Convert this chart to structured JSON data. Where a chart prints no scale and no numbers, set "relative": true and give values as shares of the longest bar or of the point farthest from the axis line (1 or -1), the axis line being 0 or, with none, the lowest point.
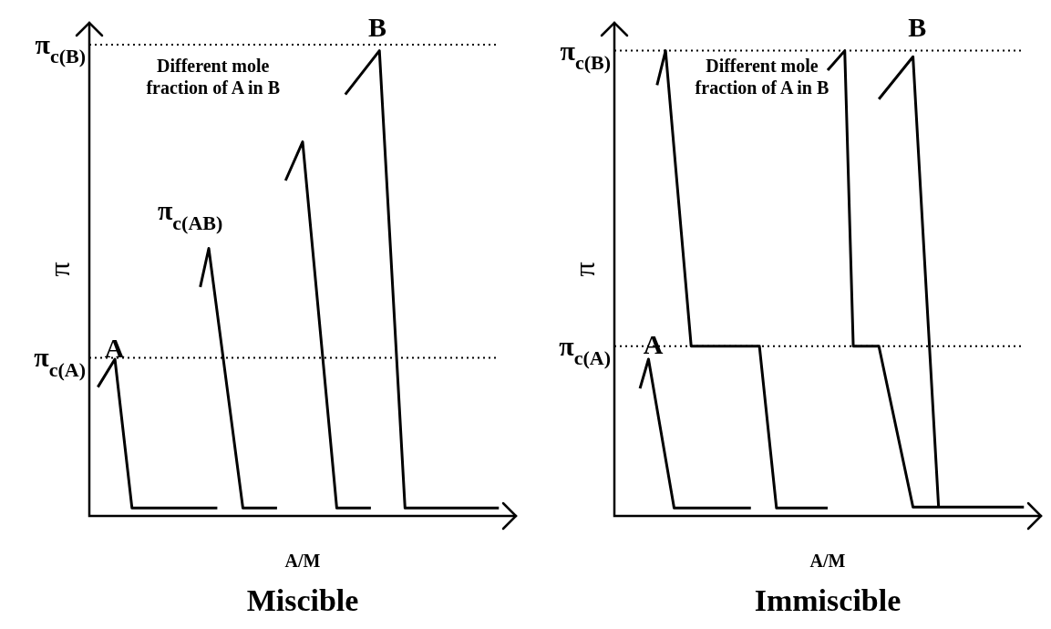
{
  "chart_data": [
    {
      "type": "line",
      "title": "Miscible",
      "xlabel": "A/M",
      "ylabel": "π",
      "relative": true,
      "tick_labels": false,
      "categories": [
        null,
        null,
        null,
        null,
        null,
        null,
        null,
        null,
        null,
        null,
        null,
        null,
        null,
        null,
        null,
        null,
        null,
        null,
        null,
        null,
        null,
        null,
        null,
        null,
        null,
        null,
        null,
        null,
        null,
        null,
        null,
        null,
        null,
        null,
        null,
        null,
        null,
        null,
        null,
        null,
        null,
        null,
        null,
        null,
        null,
        null,
        null,
        null,
        null,
        null,
        null
      ],
      "series": [
        {
          "color": "#000000",
          "values": [
            null,
            0.277,
            null,
            0.337,
            null,
            0.017,
            null,
            null,
            null,
            null,
            null,
            null,
            null,
            null,
            null,
            0.017,
            null,
            null,
            null,
            null,
            null,
            null,
            null,
            null,
            null,
            null,
            null,
            null,
            null,
            null,
            null,
            null,
            null,
            null,
            null,
            null,
            null,
            null,
            null,
            null,
            null,
            null,
            null,
            null,
            null,
            null,
            null,
            null,
            null,
            null,
            null
          ]
        },
        {
          "color": "#000000",
          "values": [
            null,
            null,
            null,
            null,
            null,
            null,
            null,
            null,
            null,
            null,
            null,
            null,
            null,
            0.492,
            0.575,
            null,
            null,
            null,
            0.017,
            null,
            null,
            null,
            0.017,
            null,
            null,
            null,
            null,
            null,
            null,
            null,
            null,
            null,
            null,
            null,
            null,
            null,
            null,
            null,
            null,
            null,
            null,
            null,
            null,
            null,
            null,
            null,
            null,
            null,
            null,
            null,
            null
          ]
        },
        {
          "color": "#000000",
          "values": [
            null,
            null,
            null,
            null,
            null,
            null,
            null,
            null,
            null,
            null,
            null,
            null,
            null,
            null,
            null,
            null,
            null,
            null,
            null,
            null,
            null,
            null,
            null,
            0.721,
            null,
            0.804,
            null,
            null,
            null,
            0.017,
            null,
            null,
            null,
            0.017,
            null,
            null,
            null,
            null,
            null,
            null,
            null,
            null,
            null,
            null,
            null,
            null,
            null,
            null,
            null,
            null,
            null
          ]
        },
        {
          "color": "#000000",
          "values": [
            null,
            null,
            null,
            null,
            null,
            null,
            null,
            null,
            null,
            null,
            null,
            null,
            null,
            null,
            null,
            null,
            null,
            null,
            null,
            null,
            null,
            null,
            null,
            null,
            null,
            null,
            null,
            null,
            null,
            null,
            0.906,
            null,
            null,
            null,
            1,
            null,
            null,
            0.017,
            null,
            null,
            null,
            null,
            null,
            null,
            null,
            null,
            null,
            null,
            0.017,
            null,
            null
          ]
        }
      ],
      "ref_lines": [
        {
          "axis": "y",
          "value": 1.013,
          "label": "π$_{c(B)}$",
          "line_style": "dotted"
        },
        {
          "axis": "y",
          "value": 0.34,
          "label": "π$_{c(A)}$",
          "line_style": "dotted"
        }
      ],
      "annotations": [
        "A",
        "B",
        "π$_{c(AB)}$",
        "Different mole fraction of A in B"
      ]
    },
    {
      "type": "line",
      "title": "Immiscible",
      "xlabel": "A/M",
      "ylabel": "π",
      "relative": true,
      "tick_labels": false,
      "categories": [
        null,
        null,
        null,
        null,
        null,
        null,
        null,
        null,
        null,
        null,
        null,
        null,
        null,
        null,
        null,
        null,
        null,
        null,
        null,
        null,
        null,
        null,
        null,
        null,
        null,
        null,
        null,
        null,
        null,
        null,
        null,
        null,
        null,
        null,
        null,
        null,
        null,
        null,
        null,
        null,
        null,
        null,
        null,
        null,
        null,
        null,
        null,
        null,
        null,
        null,
        null
      ],
      "series": [
        {
          "color": "#000000",
          "values": [
            null,
            null,
            null,
            0.274,
            0.337,
            null,
            null,
            0.017,
            null,
            null,
            null,
            null,
            null,
            null,
            null,
            null,
            0.017,
            null,
            null,
            null,
            null,
            null,
            null,
            null,
            null,
            null,
            null,
            null,
            null,
            null,
            null,
            null,
            null,
            null,
            null,
            null,
            null,
            null,
            null,
            null,
            null,
            null,
            null,
            null,
            null,
            null,
            null,
            null,
            null,
            null,
            null
          ]
        },
        {
          "color": "#000000",
          "values": [
            null,
            null,
            null,
            null,
            null,
            0.926,
            1,
            null,
            null,
            0.365,
            null,
            null,
            null,
            null,
            null,
            null,
            null,
            0.365,
            null,
            0.017,
            null,
            null,
            null,
            null,
            null,
            0.017,
            null,
            null,
            null,
            null,
            null,
            null,
            null,
            null,
            null,
            null,
            null,
            null,
            null,
            null,
            null,
            null,
            null,
            null,
            null,
            null,
            null,
            null,
            null,
            null,
            null
          ]
        },
        {
          "color": "#000000",
          "values": [
            null,
            null,
            null,
            null,
            null,
            null,
            null,
            null,
            null,
            null,
            null,
            null,
            null,
            null,
            null,
            null,
            null,
            null,
            null,
            null,
            null,
            null,
            null,
            null,
            null,
            0.958,
            null,
            1,
            0.365,
            null,
            null,
            0.365,
            null,
            null,
            null,
            0.019,
            null,
            null,
            null,
            null,
            null,
            null,
            null,
            null,
            null,
            null,
            null,
            null,
            0.019,
            null,
            null
          ]
        },
        {
          "color": "#000000",
          "values": [
            null,
            null,
            null,
            null,
            null,
            null,
            null,
            null,
            null,
            null,
            null,
            null,
            null,
            null,
            null,
            null,
            null,
            null,
            null,
            null,
            null,
            null,
            null,
            null,
            null,
            null,
            null,
            null,
            null,
            null,
            null,
            0.896,
            null,
            null,
            null,
            0.987,
            null,
            null,
            0.019,
            null,
            null,
            null,
            null,
            null,
            null,
            null,
            null,
            null,
            null,
            null,
            null
          ]
        }
      ],
      "ref_lines": [
        {
          "axis": "y",
          "value": 1,
          "label": "π$_{c(B)}$",
          "line_style": "dotted"
        },
        {
          "axis": "y",
          "value": 0.365,
          "label": "π$_{c(A)}$",
          "line_style": "dotted"
        }
      ],
      "annotations": [
        "A",
        "B",
        "Different mole fraction of A in B"
      ]
    }
  ]
}
